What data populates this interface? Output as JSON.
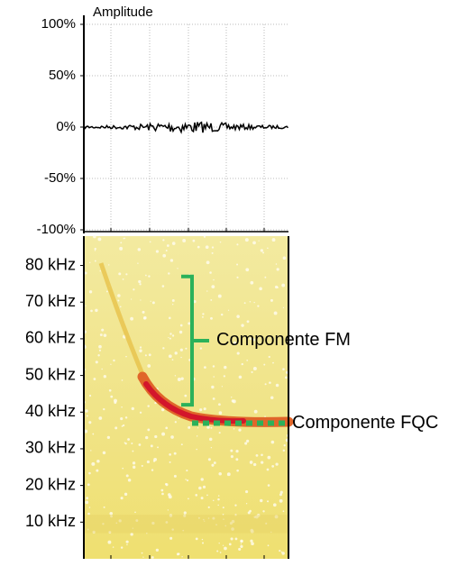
{
  "chart_data": [
    {
      "type": "waveform",
      "title": "Amplitude",
      "ylim": [
        -100,
        100
      ],
      "yticks": [
        {
          "value": 100,
          "label": "100%"
        },
        {
          "value": 50,
          "label": "50%"
        },
        {
          "value": 0,
          "label": "0%"
        },
        {
          "value": -50,
          "label": "-50%"
        },
        {
          "value": -100,
          "label": "-100%"
        }
      ],
      "grid": true
    },
    {
      "type": "spectrogram",
      "ylim": [
        0,
        88
      ],
      "yticks": [
        {
          "value": 10,
          "label": "10 kHz"
        },
        {
          "value": 20,
          "label": "20 kHz"
        },
        {
          "value": 30,
          "label": "30 kHz"
        },
        {
          "value": 40,
          "label": "40 kHz"
        },
        {
          "value": 50,
          "label": "50 kHz"
        },
        {
          "value": 60,
          "label": "60 kHz"
        },
        {
          "value": 70,
          "label": "70 kHz"
        },
        {
          "value": 80,
          "label": "80 kHz"
        }
      ],
      "annotations": [
        {
          "text": "Componente FM",
          "range": [
            42,
            77
          ],
          "color": "#2bb15a"
        },
        {
          "text": "Componente FQC",
          "value": 37,
          "color": "#2bb15a"
        }
      ]
    }
  ]
}
